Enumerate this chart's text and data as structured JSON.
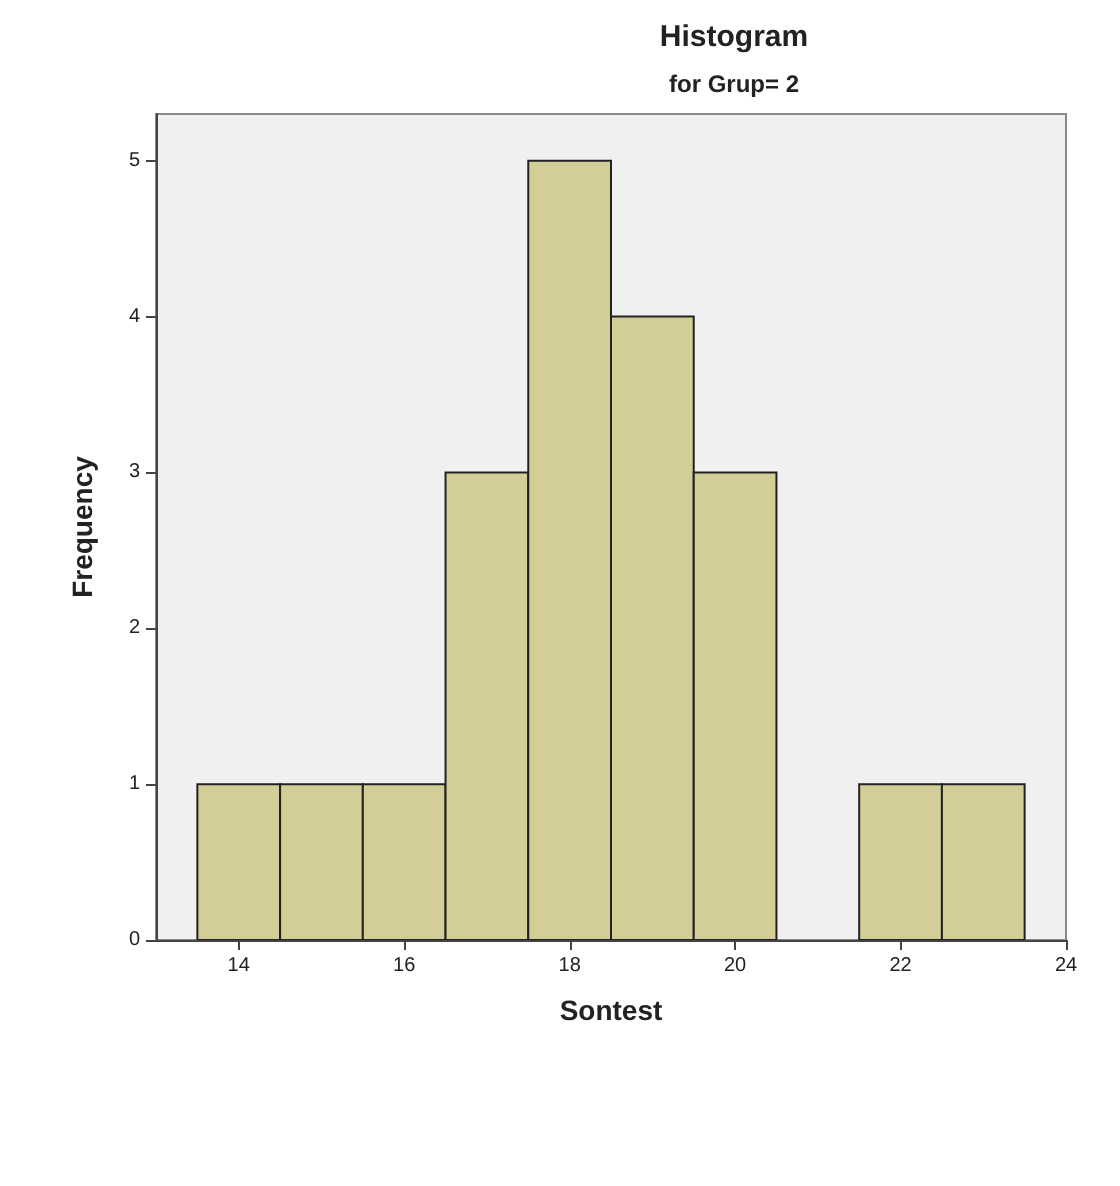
{
  "chart_data": {
    "type": "histogram",
    "title": "Histogram",
    "subtitle": "for Grup= 2",
    "xlabel": "Sontest",
    "ylabel": "Frequency",
    "bins": [
      13.5,
      14.5,
      15.5,
      16.5,
      17.5,
      18.5,
      19.5,
      20.5,
      21.5,
      22.5,
      23.5
    ],
    "values": [
      1,
      1,
      1,
      3,
      5,
      4,
      3,
      0,
      1,
      1
    ],
    "color": "#d3ce97",
    "xlim": [
      13,
      24
    ],
    "xticks": [
      14,
      16,
      18,
      20,
      22,
      24
    ],
    "ylim": [
      0,
      5.3
    ],
    "yticks": [
      0,
      1,
      2,
      3,
      4,
      5
    ],
    "grid": false
  }
}
